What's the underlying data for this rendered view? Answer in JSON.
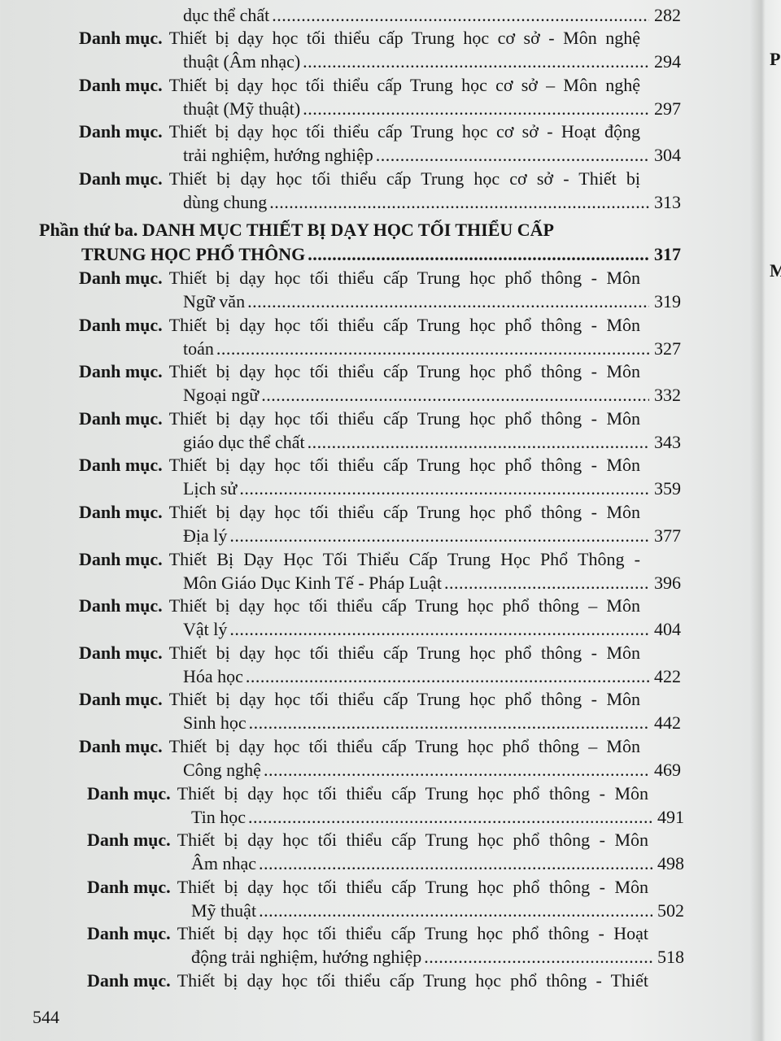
{
  "top_continuation": {
    "text": "dục thể chất",
    "page": "282"
  },
  "section_a": [
    {
      "label": "Danh mục.",
      "line1": "Thiết bị dạy học tối thiểu cấp Trung học cơ sở - Môn nghệ",
      "line2": "thuật (Âm nhạc)",
      "page": "294"
    },
    {
      "label": "Danh mục.",
      "line1": "Thiết bị dạy học tối thiểu cấp Trung học cơ sở – Môn nghệ",
      "line2": "thuật (Mỹ thuật)",
      "page": "297"
    },
    {
      "label": "Danh mục.",
      "line1": "Thiết bị dạy học tối thiểu cấp Trung học cơ sở - Hoạt động",
      "line2": "trải nghiệm, hướng nghiệp",
      "page": "304"
    },
    {
      "label": "Danh mục.",
      "line1": "Thiết bị dạy học tối thiểu cấp Trung học cơ sở - Thiết bị",
      "line2": "dùng chung",
      "page": "313"
    }
  ],
  "part_heading": {
    "line1": "Phần thứ ba. DANH MỤC THIẾT BỊ DẠY HỌC TỐI THIỂU CẤP",
    "line2": "TRUNG HỌC PHỔ THÔNG",
    "page": "317"
  },
  "section_b": [
    {
      "label": "Danh mục.",
      "line1": "Thiết bị dạy học tối thiểu cấp Trung học phổ thông - Môn",
      "line2": "Ngữ văn",
      "page": "319"
    },
    {
      "label": "Danh mục.",
      "line1": "Thiết bị dạy học tối thiểu cấp Trung học phổ thông - Môn",
      "line2": "toán",
      "page": "327"
    },
    {
      "label": "Danh mục.",
      "line1": "Thiết bị dạy học tối thiểu cấp Trung học phổ thông - Môn",
      "line2": "Ngoại ngữ",
      "page": "332"
    },
    {
      "label": "Danh mục.",
      "line1": "Thiết bị dạy học tối thiểu cấp Trung học phổ thông - Môn",
      "line2": "giáo dục thể chất",
      "page": "343"
    },
    {
      "label": "Danh mục.",
      "line1": "Thiết bị dạy học tối thiểu cấp Trung học phổ thông - Môn",
      "line2": "Lịch sử",
      "page": "359"
    },
    {
      "label": "Danh mục.",
      "line1": "Thiết bị dạy học tối thiểu cấp Trung học phổ thông - Môn",
      "line2": "Địa lý",
      "page": "377"
    },
    {
      "label": "Danh mục.",
      "line1": "Thiết Bị Dạy Học Tối Thiểu Cấp Trung Học Phổ Thông -",
      "line2": "Môn Giáo Dục Kinh Tế - Pháp Luật",
      "page": "396"
    },
    {
      "label": "Danh mục.",
      "line1": "Thiết bị dạy học tối thiểu cấp Trung học phổ thông – Môn",
      "line2": "Vật lý",
      "page": "404"
    },
    {
      "label": "Danh mục.",
      "line1": "Thiết bị dạy học tối thiểu cấp Trung học phổ thông - Môn",
      "line2": "Hóa học",
      "page": "422"
    },
    {
      "label": "Danh mục.",
      "line1": "Thiết bị dạy học tối thiểu cấp Trung học phổ thông - Môn",
      "line2": "Sinh học",
      "page": "442"
    },
    {
      "label": "Danh mục.",
      "line1": "Thiết bị dạy học tối thiểu cấp Trung học phổ thông – Môn",
      "line2": "Công nghệ",
      "page": "469"
    },
    {
      "label": "Danh mục.",
      "line1": "Thiết bị dạy học tối thiểu cấp Trung học phổ thông - Môn",
      "line2": "Tin học",
      "page": "491"
    },
    {
      "label": "Danh mục.",
      "line1": "Thiết bị dạy học tối thiểu cấp Trung học phổ thông - Môn",
      "line2": "Âm nhạc",
      "page": "498"
    },
    {
      "label": "Danh mục.",
      "line1": "Thiết bị dạy học tối thiểu cấp Trung học phổ thông - Môn",
      "line2": "Mỹ thuật",
      "page": "502"
    },
    {
      "label": "Danh mục.",
      "line1": "Thiết bị dạy học tối thiểu cấp Trung học phổ thông - Hoạt",
      "line2": "động trải nghiệm, hướng nghiệp",
      "page": "518"
    },
    {
      "label": "Danh mục.",
      "line1": "Thiết bị dạy học tối thiểu cấp Trung học phổ thông - Thiết",
      "line2": null,
      "page": null
    }
  ],
  "folio": "544",
  "facing_page_fragments": [
    "P",
    "M"
  ]
}
